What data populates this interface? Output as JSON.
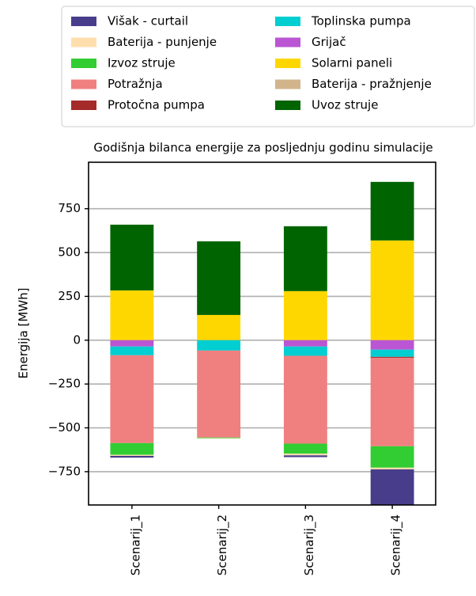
{
  "chart_data": {
    "type": "stacked_bar",
    "title": "Godišnja bilanca energije za posljednju godinu simulacije",
    "y_label": "Energija [MWh]",
    "categories": [
      "Scenarij_1",
      "Scenarij_2",
      "Scenarij_3",
      "Scenarij_4"
    ],
    "series": [
      {
        "name": "Višak - curtail",
        "color": "#483d8b",
        "values": [
          -10,
          0,
          -10,
          -233
        ]
      },
      {
        "name": "Baterija - punjenje",
        "color": "#ffdead",
        "values": [
          -6,
          -3,
          -10,
          -10
        ]
      },
      {
        "name": "Izvoz struje",
        "color": "#32cd32",
        "values": [
          -67,
          -4,
          -57,
          -122
        ]
      },
      {
        "name": "Potražnja",
        "color": "#f08080",
        "values": [
          -501,
          -496,
          -501,
          -505
        ]
      },
      {
        "name": "Protočna pumpa",
        "color": "#a52a2a",
        "values": [
          0,
          0,
          0,
          -5
        ]
      },
      {
        "name": "Toplinska pumpa",
        "color": "#00ced1",
        "values": [
          -50,
          -59,
          -53,
          -41
        ]
      },
      {
        "name": "Grijač",
        "color": "#ba55d3",
        "values": [
          -36,
          0,
          -36,
          -54
        ]
      },
      {
        "name": "Solarni paneli",
        "color": "#ffd700",
        "values": [
          284,
          144,
          280,
          569
        ]
      },
      {
        "name": "Baterija - pražnjenje",
        "color": "#d2b48c",
        "values": [
          0,
          0,
          0,
          0
        ]
      },
      {
        "name": "Uvoz struje",
        "color": "#006400",
        "values": [
          375,
          420,
          370,
          334
        ]
      }
    ],
    "ylim": [
      -940,
      1015
    ],
    "yticks": [
      {
        "value": -750,
        "label": "−750"
      },
      {
        "value": -500,
        "label": "−500"
      },
      {
        "value": -250,
        "label": "−250"
      },
      0,
      250,
      500,
      750
    ],
    "grid": true,
    "legend": "top"
  }
}
